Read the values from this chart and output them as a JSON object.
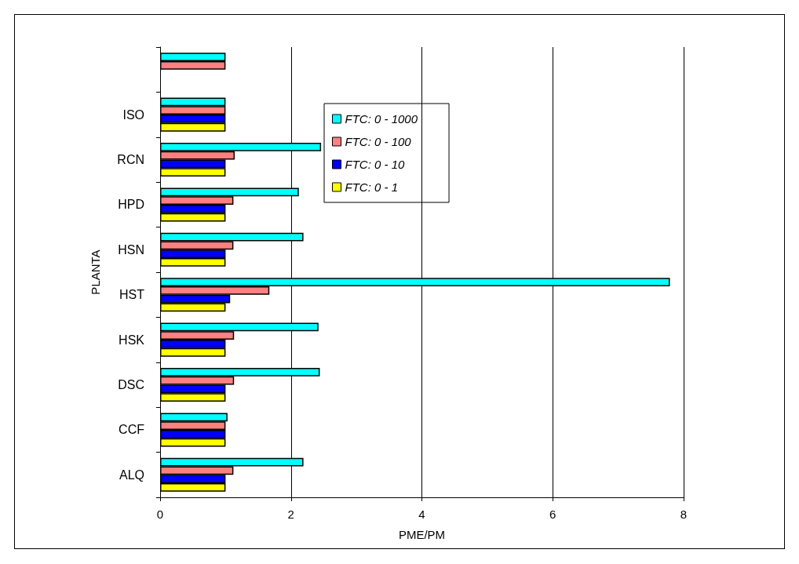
{
  "chart_data": {
    "type": "bar",
    "orientation": "horizontal",
    "xlabel": "PME/PM",
    "ylabel": "PLANTA",
    "categories": [
      null,
      "ISO",
      "RCN",
      "HPD",
      "HSN",
      "HST",
      "HSK",
      "DSC",
      "CCF",
      "ALQ"
    ],
    "series": [
      {
        "name": "FTC: 0 - 1000",
        "color": "#00ffff",
        "values": [
          1.0,
          1.0,
          2.46,
          2.12,
          2.19,
          7.79,
          2.42,
          2.44,
          1.03,
          2.19
        ]
      },
      {
        "name": "FTC: 0 - 100",
        "color": "#ff8080",
        "values": [
          1.0,
          1.0,
          1.14,
          1.12,
          1.12,
          1.67,
          1.13,
          1.13,
          1.0,
          1.12
        ]
      },
      {
        "name": "FTC: 0 - 10",
        "color": "#0000ff",
        "values": [
          null,
          1.0,
          1.0,
          1.0,
          1.0,
          1.07,
          1.0,
          1.0,
          1.0,
          1.0
        ]
      },
      {
        "name": "FTC: 0 - 1",
        "color": "#ffff00",
        "values": [
          null,
          1.0,
          1.0,
          1.0,
          1.0,
          1.0,
          1.0,
          1.0,
          1.0,
          1.0
        ]
      }
    ],
    "xlim": [
      0,
      8
    ],
    "xticks": [
      0,
      2,
      4,
      6,
      8
    ],
    "grid": "x",
    "legend": "top"
  }
}
